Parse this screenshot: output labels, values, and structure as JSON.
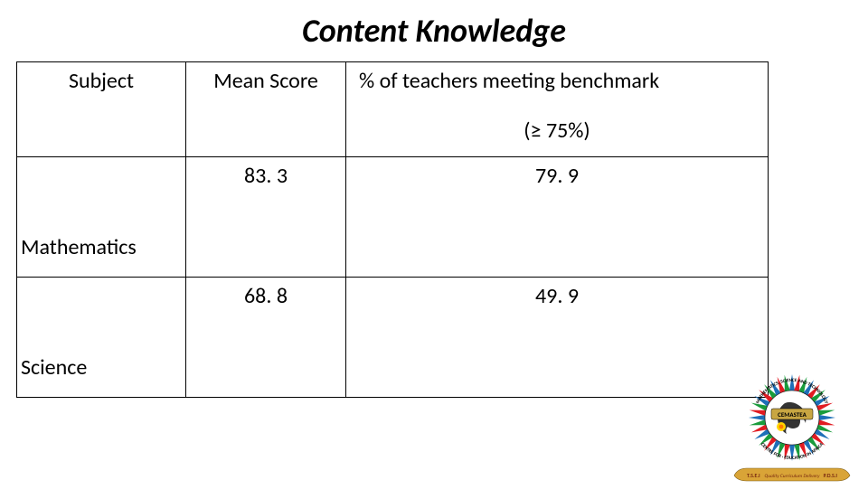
{
  "title": "Content Knowledge",
  "table": {
    "columns": {
      "subject": "Subject",
      "mean_score": "Mean Score",
      "benchmark_line1": "% of teachers meeting benchmark",
      "benchmark_line2": "(≥ 75%)"
    },
    "rows": [
      {
        "subject": "Mathematics",
        "mean_score": "83. 3",
        "benchmark": "79. 9"
      },
      {
        "subject": "Science",
        "mean_score": "68. 8",
        "benchmark": "49. 9"
      }
    ]
  },
  "logo": {
    "outer_text_top": "MATHEMATICS, SCIENCE AND TECHNOLOGY",
    "outer_text_bottom": "CENTRE FOR · EDUCATION IN AFRICA",
    "banner_text": "CEMASTEA",
    "ribbon_left": "T.S.E.I",
    "ribbon_center": "Quality Curriculum Delivery",
    "ribbon_right": "P.D.S.I",
    "colors": {
      "ray1": "#1e6fb8",
      "ray2": "#e11b22",
      "ray3": "#1a9c3c",
      "banner_bg": "#c8a642",
      "banner_text": "#000000",
      "ribbon": "#d9a437",
      "africa": "#333333",
      "spark": "#ffd400"
    }
  }
}
